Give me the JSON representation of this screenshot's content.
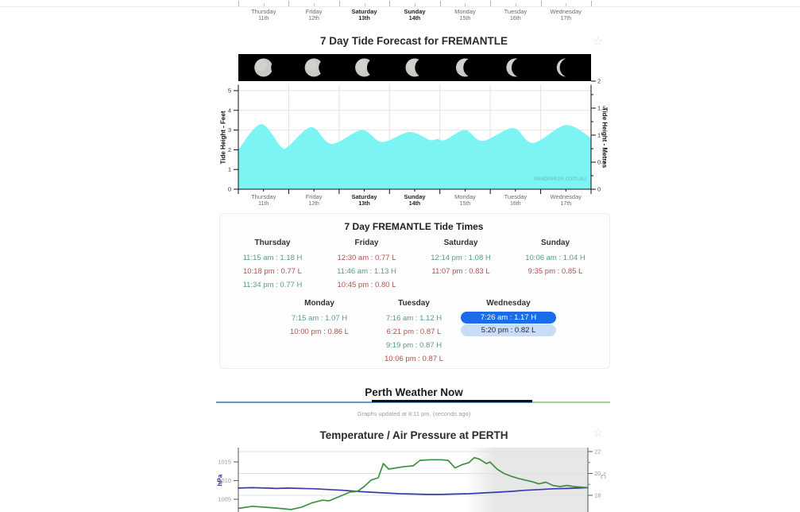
{
  "icons": {
    "favorite": "☆"
  },
  "colors": {
    "accent_high": "#5a9a8d",
    "accent_low": "#b0524e",
    "highlight_primary_bg": "#1b6ce8",
    "highlight_primary_text": "#ffffff",
    "highlight_secondary_bg": "#c9dcf8",
    "highlight_secondary_text": "#2b2b2b",
    "rule_blue": "#5b9bd5",
    "rule_green": "#a3d18f",
    "heading_underline": "#111111",
    "tide_fill": "#7DF4F4",
    "moon_bar_bg": "#000000"
  },
  "days": [
    {
      "name": "Thursday",
      "date": "11th",
      "bold": false
    },
    {
      "name": "Friday",
      "date": "12th",
      "bold": false
    },
    {
      "name": "Saturday",
      "date": "13th",
      "bold": true
    },
    {
      "name": "Sunday",
      "date": "14th",
      "bold": true
    },
    {
      "name": "Monday",
      "date": "15th",
      "bold": false
    },
    {
      "name": "Tuesday",
      "date": "16th",
      "bold": false
    },
    {
      "name": "Wednesday",
      "date": "17th",
      "bold": false
    }
  ],
  "tide_forecast": {
    "title": "7 Day Tide Forecast for FREMANTLE",
    "watermark": "seabreeze.com.au",
    "moon_illumination": [
      0.95,
      0.8,
      0.68,
      0.55,
      0.44,
      0.32,
      0.2
    ],
    "chart_data": {
      "type": "area",
      "title": "7 Day Tide Forecast for FREMANTLE",
      "ylabel_left": "Tide Height - Feet",
      "ylabel_right": "Tide Height - Metres",
      "yticks_left": [
        0,
        1,
        2,
        3,
        4,
        5
      ],
      "yticks_right": [
        0,
        0.5,
        1,
        1.5,
        2
      ],
      "ylim_left": [
        0,
        5.3
      ],
      "categories": [
        "Thursday 11th",
        "Friday 12th",
        "Saturday 13th",
        "Sunday 14th",
        "Monday 15th",
        "Tuesday 16th",
        "Wednesday 17th"
      ],
      "points_day_feet": [
        [
          0,
          2.0
        ],
        [
          0.45,
          3.3
        ],
        [
          0.85,
          2.15
        ],
        [
          1.0,
          2.2
        ],
        [
          1.45,
          3.15
        ],
        [
          1.85,
          2.3
        ],
        [
          2.45,
          3.0
        ],
        [
          2.85,
          2.4
        ],
        [
          3.4,
          2.9
        ],
        [
          3.8,
          2.5
        ],
        [
          3.95,
          2.55
        ],
        [
          4.1,
          2.5
        ],
        [
          4.5,
          3.0
        ],
        [
          4.85,
          2.45
        ],
        [
          5.45,
          3.1
        ],
        [
          5.85,
          2.35
        ],
        [
          6.5,
          3.25
        ],
        [
          7.0,
          2.6
        ]
      ],
      "grid": true,
      "legend": false
    }
  },
  "tide_times": {
    "title": "7 Day FREMANTLE Tide Times",
    "rows": [
      [
        {
          "day": "Thursday",
          "entries": [
            {
              "time": "11:15 am",
              "height": "1.18",
              "type": "H"
            },
            {
              "time": "10:18 pm",
              "height": "0.77",
              "type": "L"
            },
            {
              "time": "11:34 pm",
              "height": "0.77",
              "type": "H"
            }
          ]
        },
        {
          "day": "Friday",
          "entries": [
            {
              "time": "12:30 am",
              "height": "0.77",
              "type": "L"
            },
            {
              "time": "11:46 am",
              "height": "1.13",
              "type": "H"
            },
            {
              "time": "10:45 pm",
              "height": "0.80",
              "type": "L"
            }
          ]
        },
        {
          "day": "Saturday",
          "entries": [
            {
              "time": "12:14 pm",
              "height": "1.08",
              "type": "H"
            },
            {
              "time": "11:07 pm",
              "height": "0.83",
              "type": "L"
            }
          ]
        },
        {
          "day": "Sunday",
          "entries": [
            {
              "time": "10:06 am",
              "height": "1.04",
              "type": "H"
            },
            {
              "time": "9:35 pm",
              "height": "0.85",
              "type": "L"
            }
          ]
        }
      ],
      [
        {
          "day": "Monday",
          "entries": [
            {
              "time": "7:15 am",
              "height": "1.07",
              "type": "H"
            },
            {
              "time": "10:00 pm",
              "height": "0.86",
              "type": "L"
            }
          ]
        },
        {
          "day": "Tuesday",
          "entries": [
            {
              "time": "7:16 am",
              "height": "1.12",
              "type": "H"
            },
            {
              "time": "6:21 pm",
              "height": "0.87",
              "type": "L"
            },
            {
              "time": "9:19 pm",
              "height": "0.87",
              "type": "H"
            },
            {
              "time": "10:06 pm",
              "height": "0.87",
              "type": "L"
            }
          ]
        },
        {
          "day": "Wednesday",
          "entries": [
            {
              "time": "7:26 am",
              "height": "1.17",
              "type": "H",
              "highlight": "primary"
            },
            {
              "time": "5:20 pm",
              "height": "0.82",
              "type": "L",
              "highlight": "secondary"
            }
          ]
        }
      ]
    ]
  },
  "weather_now": {
    "heading": "Perth Weather Now",
    "updated_text": "Graphs updated at 8:11 pm, (seconds ago)"
  },
  "temp_pressure": {
    "title": "Temperature / Air Pressure at PERTH",
    "chart_data": {
      "type": "line",
      "ylabel_left": "hPa",
      "ylabel_right": "°C",
      "yticks_left": [
        1015,
        1010,
        1005
      ],
      "yticks_right": [
        22,
        20,
        18
      ],
      "shaded_region": {
        "x_from": 0.72,
        "x_to": 1.0,
        "color": "#e7e7e7"
      },
      "grid": true,
      "series": [
        {
          "name": "Air Pressure",
          "color": "#3a3aad",
          "axis": "left",
          "points": [
            [
              0,
              1008.0
            ],
            [
              0.04,
              1008.1
            ],
            [
              0.08,
              1008.0
            ],
            [
              0.11,
              1007.9
            ],
            [
              0.14,
              1008.0
            ],
            [
              0.18,
              1007.9
            ],
            [
              0.22,
              1007.8
            ],
            [
              0.26,
              1007.6
            ],
            [
              0.3,
              1007.4
            ],
            [
              0.34,
              1007.1
            ],
            [
              0.38,
              1006.9
            ],
            [
              0.42,
              1006.7
            ],
            [
              0.46,
              1006.5
            ],
            [
              0.5,
              1006.4
            ],
            [
              0.54,
              1006.3
            ],
            [
              0.58,
              1006.3
            ],
            [
              0.62,
              1006.4
            ],
            [
              0.66,
              1006.5
            ],
            [
              0.7,
              1006.7
            ],
            [
              0.74,
              1006.9
            ],
            [
              0.78,
              1007.1
            ],
            [
              0.82,
              1007.4
            ],
            [
              0.86,
              1007.6
            ],
            [
              0.9,
              1007.8
            ],
            [
              0.94,
              1007.9
            ],
            [
              1.0,
              1008.1
            ]
          ]
        },
        {
          "name": "Temperature",
          "color": "#3d9140",
          "axis": "right",
          "points": [
            [
              0,
              16.8
            ],
            [
              0.04,
              17.0
            ],
            [
              0.08,
              16.9
            ],
            [
              0.12,
              16.8
            ],
            [
              0.15,
              16.7
            ],
            [
              0.18,
              16.9
            ],
            [
              0.21,
              17.3
            ],
            [
              0.24,
              17.55
            ],
            [
              0.26,
              17.5
            ],
            [
              0.29,
              17.9
            ],
            [
              0.32,
              18.3
            ],
            [
              0.34,
              18.35
            ],
            [
              0.36,
              18.8
            ],
            [
              0.38,
              19.4
            ],
            [
              0.4,
              19.6
            ],
            [
              0.415,
              20.9
            ],
            [
              0.43,
              20.4
            ],
            [
              0.45,
              20.5
            ],
            [
              0.47,
              20.6
            ],
            [
              0.5,
              20.7
            ],
            [
              0.52,
              21.2
            ],
            [
              0.55,
              21.25
            ],
            [
              0.58,
              21.25
            ],
            [
              0.6,
              21.2
            ],
            [
              0.62,
              20.5
            ],
            [
              0.64,
              20.8
            ],
            [
              0.66,
              21.0
            ],
            [
              0.675,
              21.45
            ],
            [
              0.69,
              21.3
            ],
            [
              0.71,
              20.9
            ],
            [
              0.72,
              21.05
            ],
            [
              0.74,
              20.4
            ],
            [
              0.76,
              20.0
            ],
            [
              0.78,
              19.75
            ],
            [
              0.8,
              19.55
            ],
            [
              0.82,
              19.4
            ],
            [
              0.84,
              19.25
            ],
            [
              0.86,
              19.05
            ],
            [
              0.88,
              19.2
            ],
            [
              0.9,
              18.9
            ],
            [
              0.92,
              18.8
            ],
            [
              0.94,
              18.9
            ],
            [
              0.96,
              18.8
            ],
            [
              0.98,
              18.75
            ],
            [
              1.0,
              18.7
            ]
          ]
        }
      ]
    }
  }
}
